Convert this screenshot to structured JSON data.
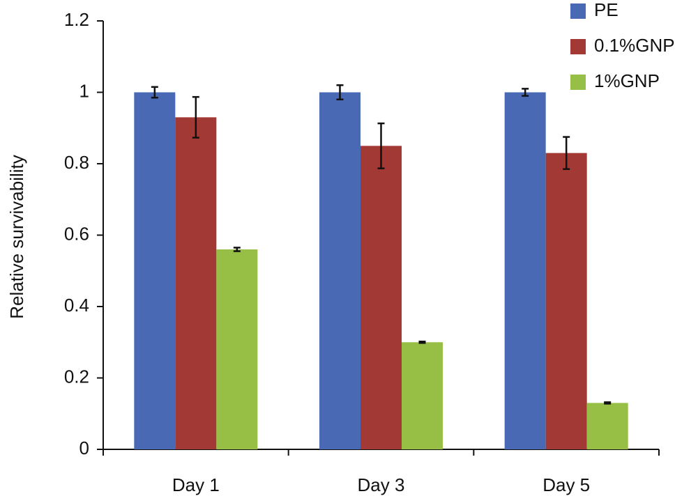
{
  "chart_data": {
    "type": "bar",
    "y_label": "Relative survivability",
    "categories": [
      "Day 1",
      "Day 3",
      "Day 5"
    ],
    "series": [
      {
        "name": "PE",
        "color": "#4a69b5",
        "values": [
          1.0,
          1.0,
          1.0
        ],
        "errors": [
          0.015,
          0.02,
          0.01
        ]
      },
      {
        "name": "0.1%GNP",
        "color": "#a33935",
        "values": [
          0.93,
          0.85,
          0.83
        ],
        "errors": [
          0.057,
          0.063,
          0.045
        ]
      },
      {
        "name": "1%GNP",
        "color": "#98bf45",
        "values": [
          0.56,
          0.3,
          0.13
        ],
        "errors": [
          0.005,
          0.002,
          0.002
        ]
      }
    ],
    "ylim": [
      0,
      1.2
    ],
    "yticks": [
      0,
      0.2,
      0.4,
      0.6,
      0.8,
      1,
      1.2
    ],
    "grid": false,
    "legend": "top-right"
  }
}
